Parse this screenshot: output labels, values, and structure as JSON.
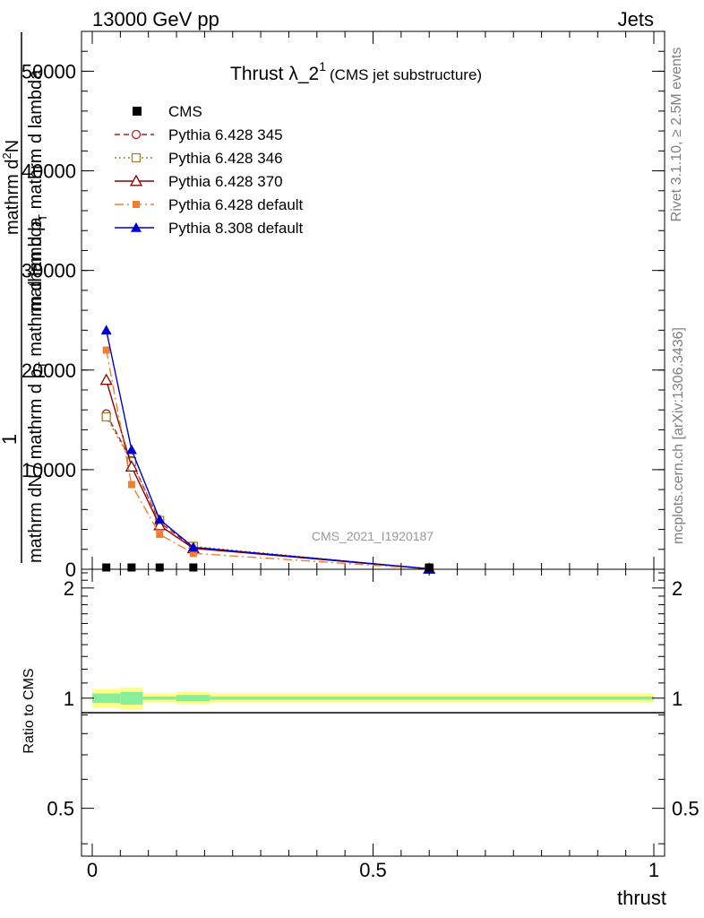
{
  "header": {
    "left": "13000 GeV pp",
    "right": "Jets"
  },
  "side": {
    "rivet": "Rivet 3.1.10, ≥ 2.5M events",
    "mcplots": "mcplots.cern.ch [arXiv:1306.3436]"
  },
  "chart_data": {
    "type": "line",
    "title_main": "Thrust λ_2",
    "title_sup": "1",
    "title_note": "(CMS jet substructure)",
    "watermark": "CMS_2021_I1920187",
    "xlabel": "thrust",
    "ylabel_num": "1",
    "ylabel_den": "mathrm dN / mathrm d p",
    "ylabel_den_sub": "T",
    "ylabel_den_tail": "mathrm d lambda",
    "ylabel_top_num": "mathrm d",
    "ylabel_top_sup": "2",
    "ylabel_top_n": "N",
    "ylabel_top_den": "mathrm d p",
    "ylabel_top_den_sub": "T",
    "ylabel_top_den_tail": "mathrm d lambda",
    "ratio_ylabel": "Ratio to CMS",
    "xlim": [
      0,
      1
    ],
    "ylim": [
      0,
      54000
    ],
    "ratio_ylim": [
      0.37,
      2.25
    ],
    "x_ticks": [
      {
        "v": 0,
        "label": "0"
      },
      {
        "v": 0.5,
        "label": "0.5"
      },
      {
        "v": 1,
        "label": "1"
      }
    ],
    "y_ticks": [
      {
        "v": 0,
        "label": "0"
      },
      {
        "v": 10000,
        "label": "10000"
      },
      {
        "v": 20000,
        "label": "20000"
      },
      {
        "v": 30000,
        "label": "30000"
      },
      {
        "v": 40000,
        "label": "40000"
      },
      {
        "v": 50000,
        "label": "50000"
      }
    ],
    "ratio_y_ticks": [
      {
        "v": 0.5,
        "label": "0.5"
      },
      {
        "v": 1,
        "label": "1"
      },
      {
        "v": 2,
        "label": "2"
      }
    ],
    "x": [
      0.025,
      0.07,
      0.12,
      0.18,
      0.6
    ],
    "data": {
      "name": "CMS",
      "values": [
        40,
        30,
        20,
        10,
        1
      ]
    },
    "series": [
      {
        "name": "Pythia 6.428 345",
        "color": "#b22222",
        "marker": "open-circle",
        "dash": "6,4",
        "values": [
          15600,
          10900,
          4700,
          2200,
          40
        ]
      },
      {
        "name": "Pythia 6.428 346",
        "color": "#a08030",
        "marker": "open-square",
        "dash": "2,3",
        "values": [
          15300,
          10800,
          4900,
          2300,
          40
        ]
      },
      {
        "name": "Pythia 6.428 370",
        "color": "#8b0000",
        "marker": "open-triangle",
        "dash": "",
        "values": [
          19000,
          10300,
          4400,
          2100,
          40
        ]
      },
      {
        "name": "Pythia 6.428 default",
        "color": "#f08030",
        "marker": "filled-square",
        "dash": "10,4,2,4",
        "values": [
          22000,
          8500,
          3500,
          1600,
          30
        ]
      },
      {
        "name": "Pythia 8.308 default",
        "color": "#0000cc",
        "marker": "filled-triangle",
        "dash": "",
        "values": [
          24000,
          12000,
          5000,
          2200,
          50
        ]
      }
    ],
    "ratio_bands": [
      {
        "x0": 0.0,
        "x1": 0.05,
        "yellow": [
          0.94,
          1.06
        ],
        "green": [
          0.97,
          1.03
        ]
      },
      {
        "x0": 0.05,
        "x1": 0.09,
        "yellow": [
          0.93,
          1.07
        ],
        "green": [
          0.96,
          1.04
        ]
      },
      {
        "x0": 0.09,
        "x1": 0.15,
        "yellow": [
          0.97,
          1.03
        ],
        "green": [
          0.99,
          1.01
        ]
      },
      {
        "x0": 0.15,
        "x1": 0.21,
        "yellow": [
          0.96,
          1.04
        ],
        "green": [
          0.98,
          1.02
        ]
      },
      {
        "x0": 0.21,
        "x1": 1.0,
        "yellow": [
          0.97,
          1.03
        ],
        "green": [
          0.99,
          1.01
        ]
      }
    ]
  }
}
